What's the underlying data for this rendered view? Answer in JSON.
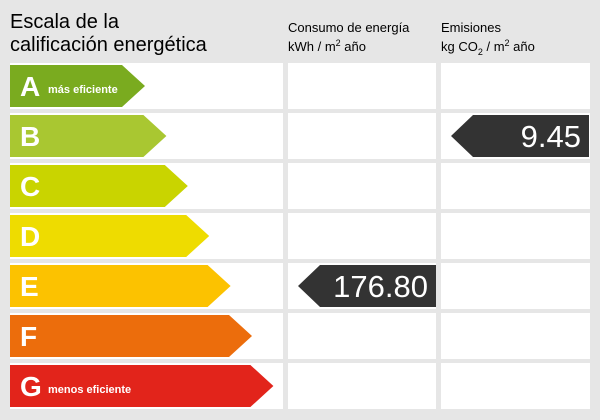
{
  "header": {
    "title_lines": [
      "Escala de la",
      "calificación energética"
    ],
    "consumption": {
      "title": "Consumo de energía",
      "unit_parts": [
        "kWh / m",
        "2",
        " año"
      ]
    },
    "emissions": {
      "title": "Emisiones",
      "unit_parts": [
        "kg CO",
        "2",
        " / m",
        "2",
        " año"
      ]
    }
  },
  "ratings": [
    {
      "letter": "A",
      "note": "más eficiente",
      "color": "#7aab1f"
    },
    {
      "letter": "B",
      "color": "#a9c731"
    },
    {
      "letter": "C",
      "color": "#c9d400"
    },
    {
      "letter": "D",
      "color": "#eedc00"
    },
    {
      "letter": "E",
      "color": "#fcc200"
    },
    {
      "letter": "F",
      "color": "#ec6d0c"
    },
    {
      "letter": "G",
      "note": "menos eficiente",
      "color": "#e2241b"
    }
  ],
  "consumption": {
    "value": "176.80",
    "rating": "E"
  },
  "emissions": {
    "value": "9.45",
    "rating": "B"
  }
}
